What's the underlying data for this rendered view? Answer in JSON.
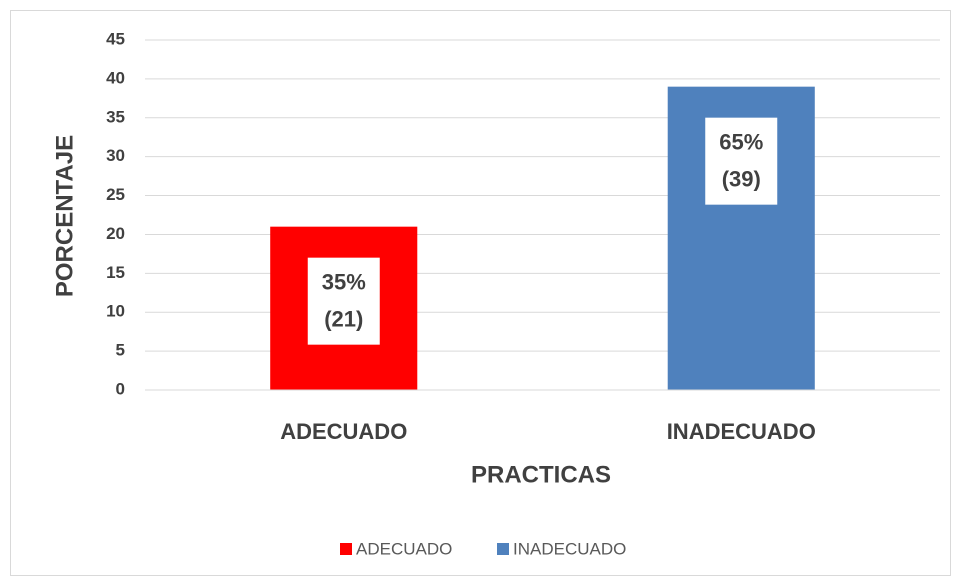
{
  "chart_data": {
    "type": "bar",
    "categories": [
      "ADECUADO",
      "INADECUADO"
    ],
    "values": [
      21,
      39
    ],
    "value_labels": [
      "(21)",
      "(39)"
    ],
    "shares": [
      35,
      65
    ],
    "share_labels": [
      "35%",
      "65%"
    ],
    "colors": [
      "#ff0000",
      "#4f81bd"
    ],
    "ylim": [
      0,
      45
    ],
    "yticks": [
      0,
      5,
      10,
      15,
      20,
      25,
      30,
      35,
      40,
      45
    ],
    "grid": true,
    "x_label": "PRACTICAS",
    "y_label": "PORCENTAJE",
    "legend": "bottom"
  }
}
